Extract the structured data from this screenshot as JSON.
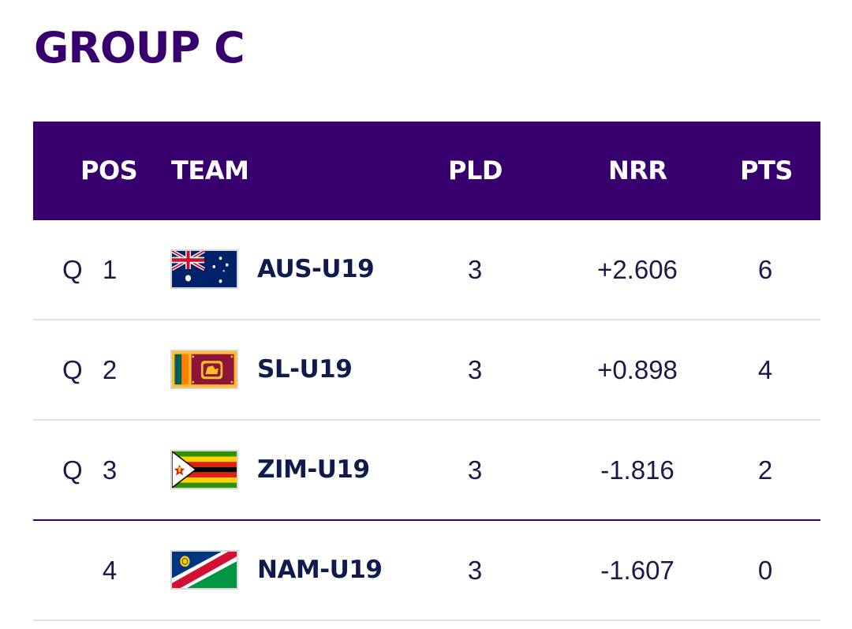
{
  "group": {
    "title": "GROUP C"
  },
  "table": {
    "headers": {
      "pos": "POS",
      "team": "TEAM",
      "pld": "PLD",
      "nrr": "NRR",
      "pts": "PTS"
    },
    "rows": [
      {
        "q": "Q",
        "pos": "1",
        "team": "AUS-U19",
        "flag": "australia-flag-icon",
        "pld": "3",
        "nrr": "+2.606",
        "pts": "6"
      },
      {
        "q": "Q",
        "pos": "2",
        "team": "SL-U19",
        "flag": "sri-lanka-flag-icon",
        "pld": "3",
        "nrr": "+0.898",
        "pts": "4"
      },
      {
        "q": "Q",
        "pos": "3",
        "team": "ZIM-U19",
        "flag": "zimbabwe-flag-icon",
        "pld": "3",
        "nrr": "-1.816",
        "pts": "2"
      },
      {
        "q": "",
        "pos": "4",
        "team": "NAM-U19",
        "flag": "namibia-flag-icon",
        "pld": "3",
        "nrr": "-1.607",
        "pts": "0"
      }
    ]
  },
  "colors": {
    "header_bg": "#37006e",
    "title": "#37006e",
    "team_text": "#0f1a4d",
    "cutoff_line": "#37006e"
  }
}
